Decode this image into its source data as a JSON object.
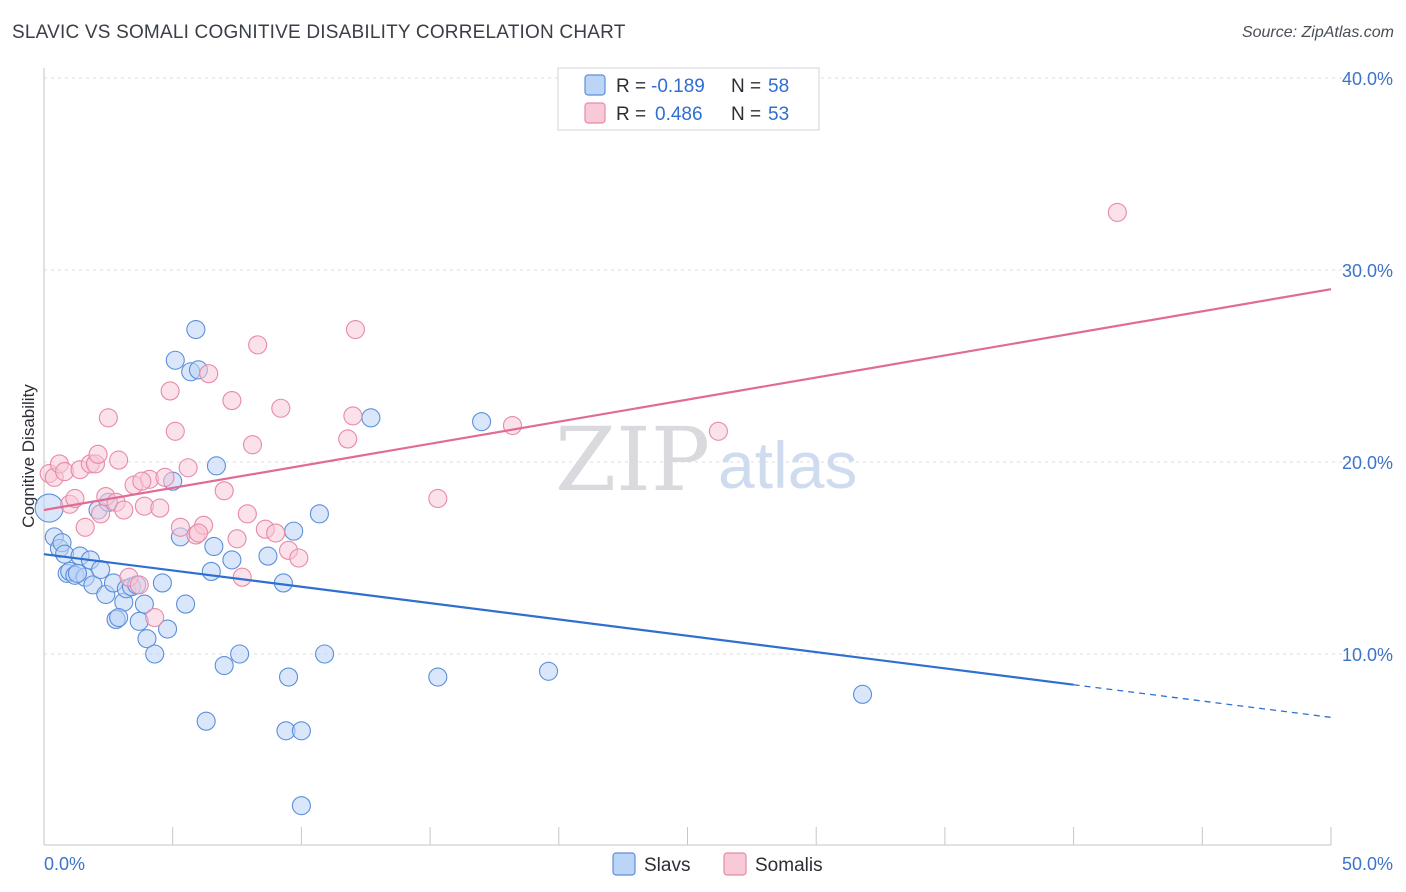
{
  "header": {
    "title": "SLAVIC VS SOMALI COGNITIVE DISABILITY CORRELATION CHART",
    "source": "Source: ZipAtlas.com"
  },
  "watermark": {
    "part1": "ZIP",
    "part2": "atlas"
  },
  "colors": {
    "slavs": "#5b8fdb",
    "slavs_fill": "#bcd4f5",
    "slavs_line": "#2f6fd0",
    "somalis": "#e88aa6",
    "somalis_fill": "#f8c9d7",
    "somalis_line": "#e06c95",
    "grid": "#dcdde2",
    "tick_label": "#3d74c9"
  },
  "stats": {
    "slavs": {
      "r_label": "R =",
      "r": "-0.189",
      "n_label": "N =",
      "n": "58"
    },
    "somalis": {
      "r_label": "R =",
      "r": "0.486",
      "n_label": "N =",
      "n": "53"
    }
  },
  "chart_data": {
    "type": "scatter",
    "title": "SLAVIC VS SOMALI COGNITIVE DISABILITY CORRELATION CHART",
    "xlabel": "",
    "ylabel": "Cognitive Disability",
    "xlim": [
      0,
      50
    ],
    "ylim": [
      0,
      42
    ],
    "x_tick_labels": [
      "0.0%",
      "50.0%"
    ],
    "y_ticks": [
      10,
      20,
      30,
      40
    ],
    "y_tick_labels": [
      "10.0%",
      "20.0%",
      "30.0%",
      "40.0%"
    ],
    "grid": true,
    "legend_position": "bottom",
    "series": [
      {
        "name": "Slavs",
        "trend": {
          "x0": 0,
          "y0": 15.2,
          "x1": 40,
          "y1": 8.4,
          "dash_to_x": 50,
          "dash_to_y": 6.7
        },
        "points": [
          [
            0.2,
            17.6
          ],
          [
            0.4,
            16.1
          ],
          [
            0.6,
            15.5
          ],
          [
            0.7,
            15.8
          ],
          [
            0.8,
            15.2
          ],
          [
            0.9,
            14.2
          ],
          [
            1.0,
            14.3
          ],
          [
            1.2,
            14.1
          ],
          [
            1.4,
            15.1
          ],
          [
            1.6,
            14.0
          ],
          [
            1.8,
            14.9
          ],
          [
            1.9,
            13.6
          ],
          [
            2.1,
            17.5
          ],
          [
            2.2,
            14.4
          ],
          [
            2.4,
            13.1
          ],
          [
            2.5,
            17.9
          ],
          [
            2.7,
            13.7
          ],
          [
            2.8,
            11.8
          ],
          [
            3.1,
            12.7
          ],
          [
            3.2,
            13.4
          ],
          [
            3.4,
            13.5
          ],
          [
            3.7,
            11.7
          ],
          [
            3.9,
            12.6
          ],
          [
            4.0,
            10.8
          ],
          [
            4.3,
            10.0
          ],
          [
            4.6,
            13.7
          ],
          [
            4.8,
            11.3
          ],
          [
            5.0,
            19.0
          ],
          [
            5.1,
            25.3
          ],
          [
            5.3,
            16.1
          ],
          [
            5.5,
            12.6
          ],
          [
            5.7,
            24.7
          ],
          [
            5.9,
            26.9
          ],
          [
            6.0,
            24.8
          ],
          [
            6.3,
            6.5
          ],
          [
            6.5,
            14.3
          ],
          [
            6.6,
            15.6
          ],
          [
            6.7,
            19.8
          ],
          [
            7.0,
            9.4
          ],
          [
            7.3,
            14.9
          ],
          [
            7.6,
            10.0
          ],
          [
            8.7,
            15.1
          ],
          [
            9.3,
            13.7
          ],
          [
            9.5,
            8.8
          ],
          [
            9.7,
            16.4
          ],
          [
            10.0,
            2.1
          ],
          [
            9.4,
            6.0
          ],
          [
            10.0,
            6.0
          ],
          [
            10.7,
            17.3
          ],
          [
            10.9,
            10.0
          ],
          [
            12.7,
            22.3
          ],
          [
            15.3,
            8.8
          ],
          [
            17.0,
            22.1
          ],
          [
            19.6,
            9.1
          ],
          [
            31.8,
            7.9
          ],
          [
            1.3,
            14.2
          ],
          [
            3.6,
            13.6
          ],
          [
            2.9,
            11.9
          ]
        ]
      },
      {
        "name": "Somalis",
        "trend": {
          "x0": 0,
          "y0": 17.5,
          "x1": 50,
          "y1": 29.0
        },
        "points": [
          [
            0.2,
            19.4
          ],
          [
            0.4,
            19.2
          ],
          [
            0.6,
            19.9
          ],
          [
            0.8,
            19.5
          ],
          [
            1.0,
            17.8
          ],
          [
            1.2,
            18.1
          ],
          [
            1.4,
            19.6
          ],
          [
            1.6,
            16.6
          ],
          [
            1.8,
            19.9
          ],
          [
            2.0,
            19.9
          ],
          [
            2.1,
            20.4
          ],
          [
            2.2,
            17.3
          ],
          [
            2.4,
            18.2
          ],
          [
            2.5,
            22.3
          ],
          [
            2.8,
            17.9
          ],
          [
            2.9,
            20.1
          ],
          [
            3.1,
            17.5
          ],
          [
            3.3,
            14.0
          ],
          [
            3.5,
            18.8
          ],
          [
            3.7,
            13.6
          ],
          [
            3.9,
            17.7
          ],
          [
            4.1,
            19.1
          ],
          [
            4.3,
            11.9
          ],
          [
            4.5,
            17.6
          ],
          [
            4.7,
            19.2
          ],
          [
            4.9,
            23.7
          ],
          [
            5.1,
            21.6
          ],
          [
            5.3,
            16.6
          ],
          [
            5.6,
            19.7
          ],
          [
            5.9,
            16.2
          ],
          [
            6.2,
            16.7
          ],
          [
            6.4,
            24.6
          ],
          [
            7.0,
            18.5
          ],
          [
            7.3,
            23.2
          ],
          [
            7.5,
            16.0
          ],
          [
            7.7,
            14.0
          ],
          [
            7.9,
            17.3
          ],
          [
            8.1,
            20.9
          ],
          [
            8.3,
            26.1
          ],
          [
            8.6,
            16.5
          ],
          [
            9.0,
            16.3
          ],
          [
            9.2,
            22.8
          ],
          [
            9.5,
            15.4
          ],
          [
            9.9,
            15.0
          ],
          [
            11.8,
            21.2
          ],
          [
            12.0,
            22.4
          ],
          [
            12.1,
            26.9
          ],
          [
            15.3,
            18.1
          ],
          [
            18.2,
            21.9
          ],
          [
            26.2,
            21.6
          ],
          [
            41.7,
            33.0
          ],
          [
            3.8,
            19.0
          ],
          [
            6.0,
            16.3
          ]
        ]
      }
    ]
  }
}
